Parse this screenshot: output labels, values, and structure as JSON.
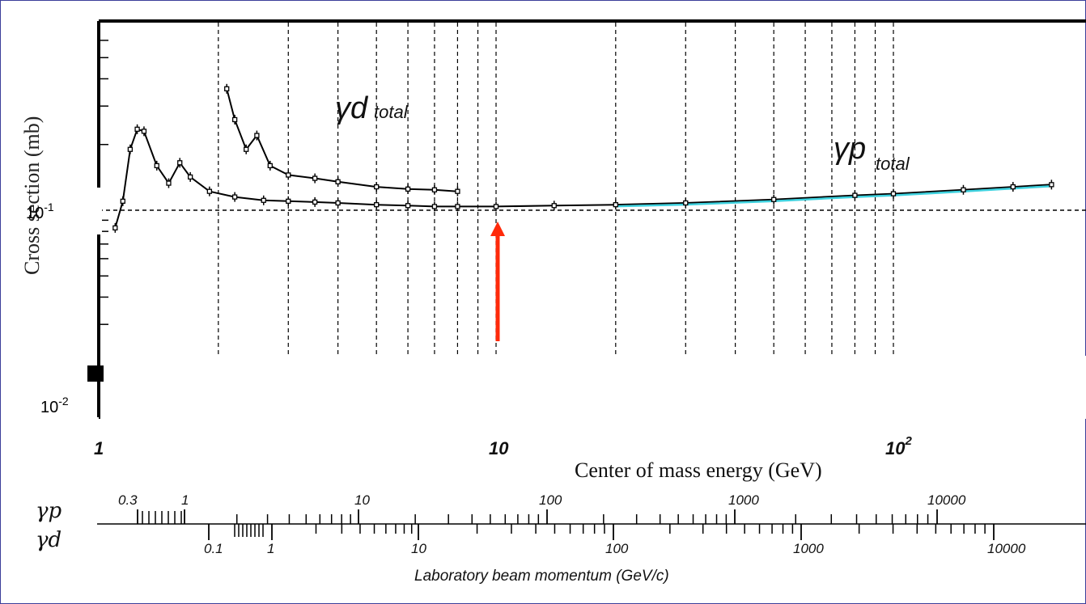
{
  "chart_data": {
    "type": "scatter",
    "title": "",
    "xlabel": "Center of mass energy (GeV)",
    "ylabel": "Cross section (mb)",
    "x_scale": "log",
    "y_scale": "log",
    "xlim": [
      1,
      250
    ],
    "x_ticks": [
      "1",
      "10",
      "10^2"
    ],
    "y_tick_labels": [
      "10-1",
      "10-2"
    ],
    "grid": "dashed vertical lines",
    "series": [
      {
        "name": "γd total",
        "x": [
          2.1,
          2.2,
          2.35,
          2.5,
          2.7,
          3.0,
          3.5,
          4.0,
          5.0,
          6.0,
          7.0,
          8.0
        ],
        "y": [
          0.36,
          0.26,
          0.19,
          0.22,
          0.16,
          0.145,
          0.14,
          0.135,
          0.128,
          0.125,
          0.124,
          0.122
        ]
      },
      {
        "name": "γp total",
        "x": [
          1.1,
          1.15,
          1.2,
          1.25,
          1.3,
          1.4,
          1.5,
          1.6,
          1.7,
          1.9,
          2.2,
          2.6,
          3.0,
          3.5,
          4.0,
          5.0,
          6.0,
          7.0,
          8.0,
          10,
          14,
          20,
          30,
          50,
          80,
          100,
          150,
          200,
          250
        ],
        "y": [
          0.083,
          0.11,
          0.19,
          0.235,
          0.23,
          0.16,
          0.133,
          0.165,
          0.142,
          0.122,
          0.115,
          0.111,
          0.11,
          0.109,
          0.108,
          0.106,
          0.105,
          0.104,
          0.104,
          0.104,
          0.105,
          0.106,
          0.108,
          0.112,
          0.117,
          0.119,
          0.124,
          0.128,
          0.131
        ]
      }
    ],
    "annotations": {
      "gamma_d_label": "γd",
      "gamma_d_sub": "total",
      "gamma_p_label": "γp",
      "gamma_p_sub": "total",
      "arrow_at_gev": 10
    },
    "secondary_axes": {
      "title": "Laboratory beam momentum (GeV/c)",
      "gamma_p_label": "γp",
      "gamma_d_label": "γd",
      "gamma_p_ticks": [
        "0.3",
        "1",
        "10",
        "100",
        "1000",
        "10000"
      ],
      "gamma_d_ticks": [
        "0.1",
        "1",
        "10",
        "100",
        "1000",
        "10000"
      ]
    }
  },
  "colors": {
    "data": "#000000",
    "fit_line": "#3fd1de",
    "arrow": "#ff2a0a",
    "frame": "#3b3f9a"
  }
}
